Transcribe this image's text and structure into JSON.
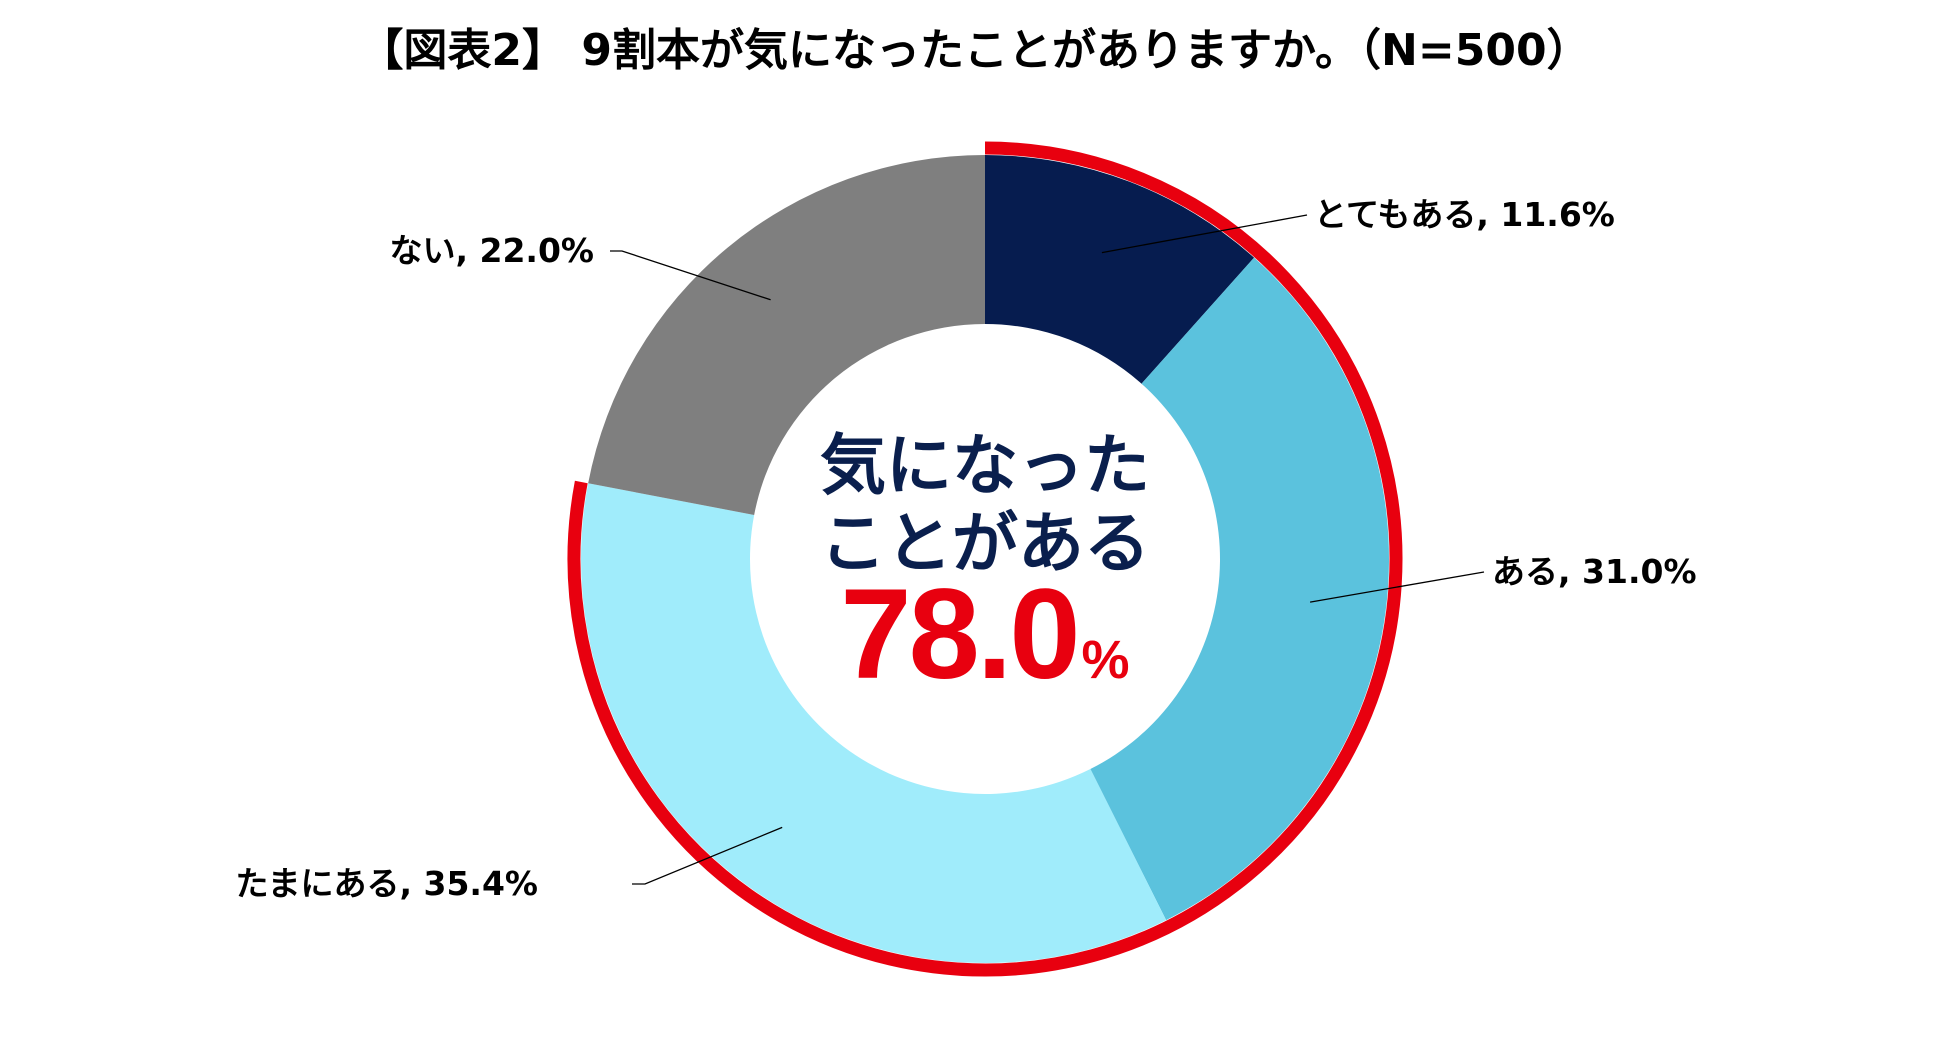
{
  "chart_data": {
    "type": "pie",
    "title": "【図表2】 9割本が気になったことがありますか。（N=500）",
    "slices": [
      {
        "label": "とてもある",
        "value": 11.6,
        "display": "とてもある, 11.6%",
        "color": "#061c4f",
        "side": "right"
      },
      {
        "label": "ある",
        "value": 31.0,
        "display": "ある, 31.0%",
        "color": "#5bc2dd",
        "side": "right"
      },
      {
        "label": "たまにある",
        "value": 35.4,
        "display": "たまにある, 35.4%",
        "color": "#a0ecfb",
        "side": "left"
      },
      {
        "label": "ない",
        "value": 22.0,
        "display": "ない, 22.0%",
        "color": "#7f7f7f",
        "side": "left"
      }
    ],
    "highlight": {
      "line1": "気になった",
      "line2": "ことがある",
      "value": "78.0",
      "unit": "%",
      "color": "#e8000f",
      "covers_value": 78.0
    },
    "center_text_color": "#0a1f4d"
  }
}
